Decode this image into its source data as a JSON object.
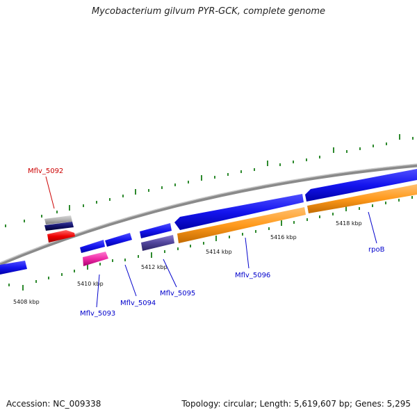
{
  "title": "Mycobacterium gilvum PYR-GCK, complete genome",
  "footer": {
    "accession": "Accession: NC_009338",
    "topology": "Topology: circular; Length: 5,619,607 bp; Genes: 5,295"
  },
  "ticks": [
    "5408 kbp",
    "5410 kbp",
    "5412 kbp",
    "5414 kbp",
    "5416 kbp",
    "5418 kbp"
  ],
  "genes": [
    {
      "name": "Mflv_5092",
      "color": "#cc0000"
    },
    {
      "name": "Mflv_5093",
      "color": "#0000cc"
    },
    {
      "name": "Mflv_5094",
      "color": "#0000cc"
    },
    {
      "name": "Mflv_5095",
      "color": "#0000cc"
    },
    {
      "name": "Mflv_5096",
      "color": "#0000cc"
    },
    {
      "name": "rpoB",
      "color": "#0000cc"
    }
  ]
}
